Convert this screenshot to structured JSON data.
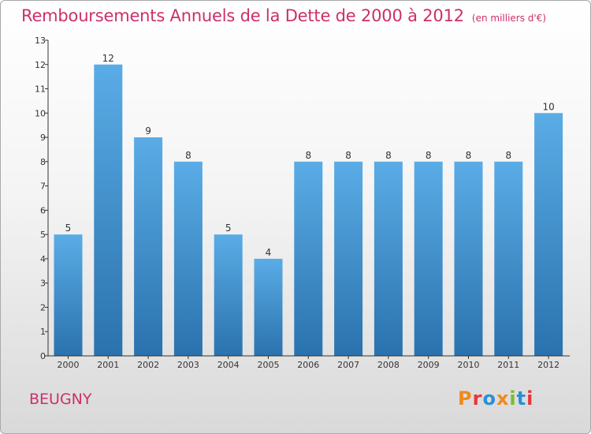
{
  "title": "Remboursements Annuels de la Dette de 2000 à 2012",
  "subtitle": "(en milliers d'€)",
  "commune": "BEUGNY",
  "logo": {
    "text": "Proxiti",
    "colors": [
      "#f08a1c",
      "#e8363a",
      "#2a8fd6",
      "#f08a1c",
      "#7dbb2e",
      "#2a8fd6",
      "#e8363a"
    ]
  },
  "colors": {
    "bar_top": "#5aace6",
    "bar_bottom": "#2a72ae",
    "title": "#cc2f6b",
    "axis": "#333333"
  },
  "chart_data": {
    "type": "bar",
    "title": "Remboursements Annuels de la Dette de 2000 à 2012",
    "subtitle": "(en milliers d'€)",
    "categories": [
      "2000",
      "2001",
      "2002",
      "2003",
      "2004",
      "2005",
      "2006",
      "2007",
      "2008",
      "2009",
      "2010",
      "2011",
      "2012"
    ],
    "values": [
      5,
      12,
      9,
      8,
      5,
      4,
      8,
      8,
      8,
      8,
      8,
      8,
      10
    ],
    "data_labels": [
      "5",
      "12",
      "9",
      "8",
      "5",
      "4",
      "8",
      "8",
      "8",
      "8",
      "8",
      "8",
      "10"
    ],
    "ylim": [
      0,
      13
    ],
    "yticks": [
      0,
      1,
      2,
      3,
      4,
      5,
      6,
      7,
      8,
      9,
      10,
      11,
      12,
      13
    ],
    "grid": false,
    "legend": "none"
  }
}
